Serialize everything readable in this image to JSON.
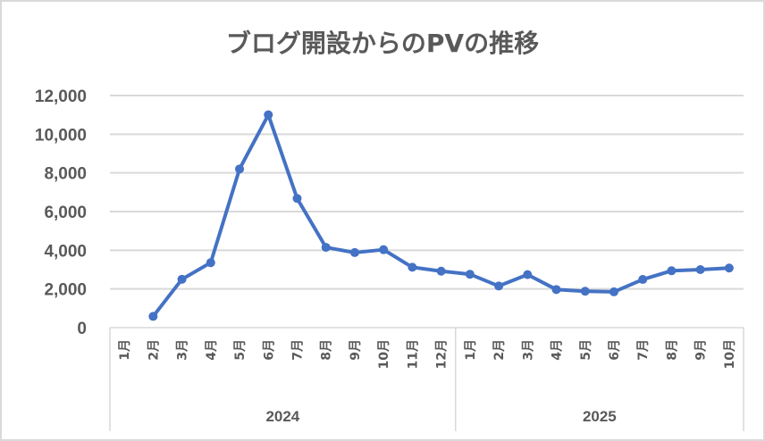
{
  "chart_data": {
    "type": "line",
    "title": "ブログ開設からのPVの推移",
    "xlabel": "",
    "ylabel": "",
    "ylim": [
      0,
      12000
    ],
    "yticks": [
      0,
      2000,
      4000,
      6000,
      8000,
      10000,
      12000
    ],
    "ytick_labels": [
      "0",
      "2,000",
      "4,000",
      "6,000",
      "8,000",
      "10,000",
      "12,000"
    ],
    "grid": true,
    "legend": "none",
    "groups": [
      {
        "label": "2024",
        "categories": [
          "1月",
          "2月",
          "3月",
          "4月",
          "5月",
          "6月",
          "7月",
          "8月",
          "9月",
          "10月",
          "11月",
          "12月"
        ]
      },
      {
        "label": "2025",
        "categories": [
          "1月",
          "2月",
          "3月",
          "4月",
          "5月",
          "6月",
          "7月",
          "8月",
          "9月",
          "10月"
        ]
      }
    ],
    "categories": [
      "2024-1月",
      "2024-2月",
      "2024-3月",
      "2024-4月",
      "2024-5月",
      "2024-6月",
      "2024-7月",
      "2024-8月",
      "2024-9月",
      "2024-10月",
      "2024-11月",
      "2024-12月",
      "2025-1月",
      "2025-2月",
      "2025-3月",
      "2025-4月",
      "2025-5月",
      "2025-6月",
      "2025-7月",
      "2025-8月",
      "2025-9月",
      "2025-10月"
    ],
    "series": [
      {
        "name": "PV",
        "color": "#4472C4",
        "values": [
          null,
          580,
          2500,
          3360,
          8200,
          11000,
          6680,
          4150,
          3880,
          4030,
          3120,
          2920,
          2760,
          2150,
          2740,
          1970,
          1880,
          1850,
          2490,
          2940,
          3000,
          3080
        ]
      }
    ]
  },
  "colors": {
    "line": "#4472C4",
    "text": "#595959",
    "grid": "#D9D9D9"
  }
}
